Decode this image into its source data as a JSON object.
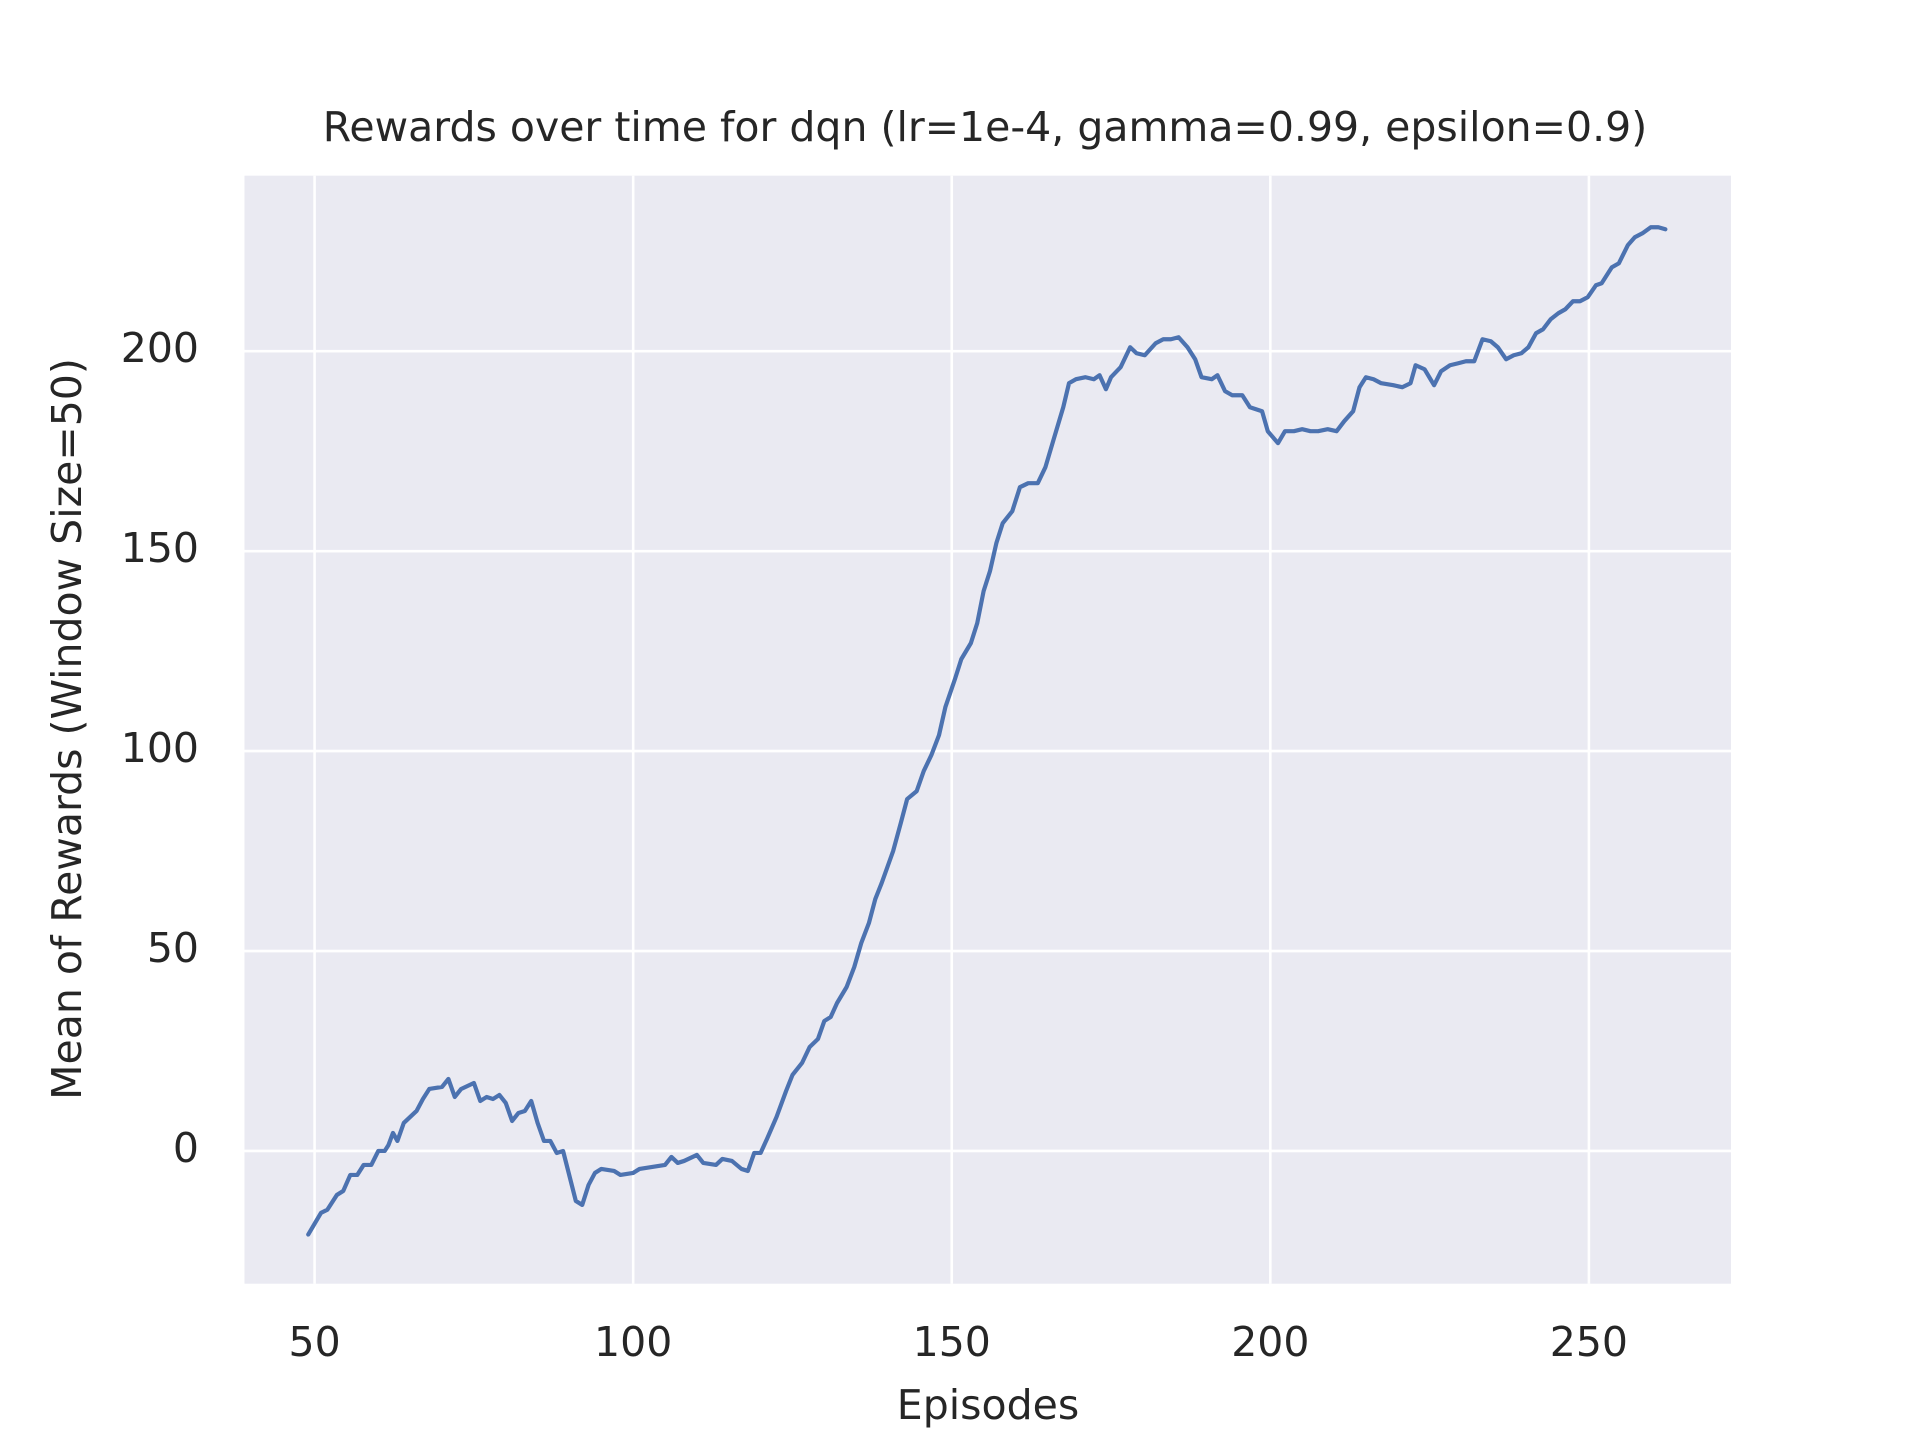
{
  "chart_data": {
    "type": "line",
    "title": "Rewards over time for dqn (lr=1e-4, gamma=0.99, epsilon=0.9)",
    "x_label": "Episodes",
    "y_label": "Mean of Rewards (Window Size=50)",
    "xlim": [
      39,
      272.3
    ],
    "ylim": [
      -33.2,
      243.9
    ],
    "xticks": [
      50,
      100,
      150,
      200,
      250
    ],
    "yticks": [
      0,
      50,
      100,
      150,
      200
    ],
    "grid": true,
    "background": "#eaeaf2",
    "series": [
      {
        "color": "#4c72b0",
        "x": [
          49,
          51,
          52,
          53.5,
          54.5,
          55.6,
          56.7,
          57.7,
          58.9,
          60,
          61,
          61.6,
          62.3,
          63,
          64,
          65,
          66,
          67,
          68,
          70,
          71,
          72,
          73,
          75,
          76,
          77,
          78,
          79,
          80,
          81,
          82,
          83,
          84,
          85,
          86,
          87,
          88,
          89,
          91,
          92,
          93,
          94,
          95,
          97,
          98,
          100,
          101,
          103,
          105,
          106,
          107,
          108,
          110,
          111,
          113,
          114,
          115.5,
          117,
          118,
          119,
          120,
          121,
          122.5,
          124,
          125,
          126.5,
          127.7,
          129,
          130,
          131,
          132,
          133.5,
          134.7,
          135.8,
          137,
          138,
          139,
          140.8,
          142,
          143,
          144.5,
          145.6,
          146.8,
          148,
          149,
          150.5,
          151.5,
          153,
          154,
          155,
          156,
          157,
          158,
          159.5,
          160.7,
          162,
          163.5,
          164.7,
          166,
          167.5,
          168.4,
          169.5,
          171,
          172.3,
          173.2,
          174.2,
          175,
          176.5,
          178,
          179,
          180.3,
          182,
          183.2,
          184.4,
          185.6,
          187,
          188.2,
          189.2,
          190.8,
          191.7,
          192.9,
          194,
          195.6,
          196.8,
          198.7,
          199.6,
          201.2,
          202.3,
          203.7,
          205,
          206.3,
          207.5,
          209,
          210.4,
          211.6,
          213,
          214,
          215,
          216.2,
          217.4,
          219.3,
          220.7,
          222,
          222.8,
          224.2,
          225.7,
          226.8,
          228.2,
          229.5,
          230.7,
          232,
          233.3,
          234.6,
          235.7,
          237,
          238.2,
          239.4,
          240.5,
          241.7,
          242.8,
          244,
          245.2,
          246.3,
          247.5,
          248.6,
          249.8,
          251.1,
          252,
          253.6,
          254.7,
          256.1,
          257.2,
          258.4,
          259.7,
          260.9,
          262
        ],
        "values": [
          -20.9,
          -15.5,
          -14.7,
          -11,
          -10,
          -6,
          -6,
          -3.5,
          -3.5,
          0,
          0,
          1.5,
          4.5,
          2.5,
          7,
          8.5,
          10,
          13,
          15.5,
          16,
          18,
          13.5,
          15.5,
          17,
          12.5,
          13.5,
          13,
          14,
          12,
          7.5,
          9.5,
          10,
          12.5,
          7,
          2.5,
          2.5,
          -0.5,
          0,
          -12.5,
          -13.5,
          -8.5,
          -5.5,
          -4.5,
          -5,
          -6,
          -5.5,
          -4.5,
          -4,
          -3.5,
          -1.5,
          -3,
          -2.5,
          -1,
          -3,
          -3.5,
          -2,
          -2.5,
          -4.5,
          -5,
          -0.5,
          -0.5,
          3,
          8.5,
          15,
          19,
          22,
          26,
          28,
          32.5,
          33.5,
          37,
          41,
          46,
          52,
          57,
          63,
          67,
          75,
          82,
          88,
          90,
          95,
          99,
          104,
          111,
          118,
          123,
          127,
          132,
          140,
          145,
          152,
          157,
          160,
          166,
          167,
          167,
          171,
          178,
          186,
          192,
          193,
          193.5,
          193,
          194,
          190.5,
          193.5,
          196,
          201,
          199.5,
          199,
          202,
          203,
          203,
          203.5,
          201,
          198,
          193.5,
          193,
          194,
          190,
          189,
          189,
          186,
          185,
          180,
          177,
          180,
          180,
          180.5,
          180,
          180,
          180.5,
          180,
          182.5,
          185,
          191,
          193.5,
          193,
          192,
          191.5,
          191,
          192,
          196.5,
          195.5,
          191.5,
          195,
          196.5,
          197,
          197.5,
          197.5,
          203,
          202.5,
          201,
          198,
          199,
          199.5,
          201,
          204.5,
          205.5,
          208,
          209.5,
          210.5,
          212.5,
          212.5,
          213.5,
          216.5,
          217,
          221,
          222,
          226.5,
          228.5,
          229.5,
          231,
          231,
          230.5
        ]
      }
    ]
  }
}
